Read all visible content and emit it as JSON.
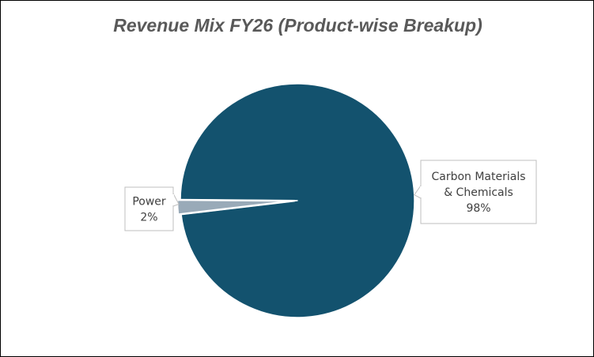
{
  "chart_data": {
    "type": "pie",
    "title": "Revenue Mix FY26 (Product-wise Breakup)",
    "slices": [
      {
        "label": "Carbon Materials & Chemicals",
        "label_lines": [
          "Carbon Materials",
          "& Chemicals"
        ],
        "value": 98,
        "value_label": "98%",
        "color": "#13526e"
      },
      {
        "label": "Power",
        "label_lines": [
          "Power"
        ],
        "value": 2,
        "value_label": "2%",
        "color": "#99aab8"
      }
    ],
    "legend": "none",
    "data_labels": "callout"
  }
}
